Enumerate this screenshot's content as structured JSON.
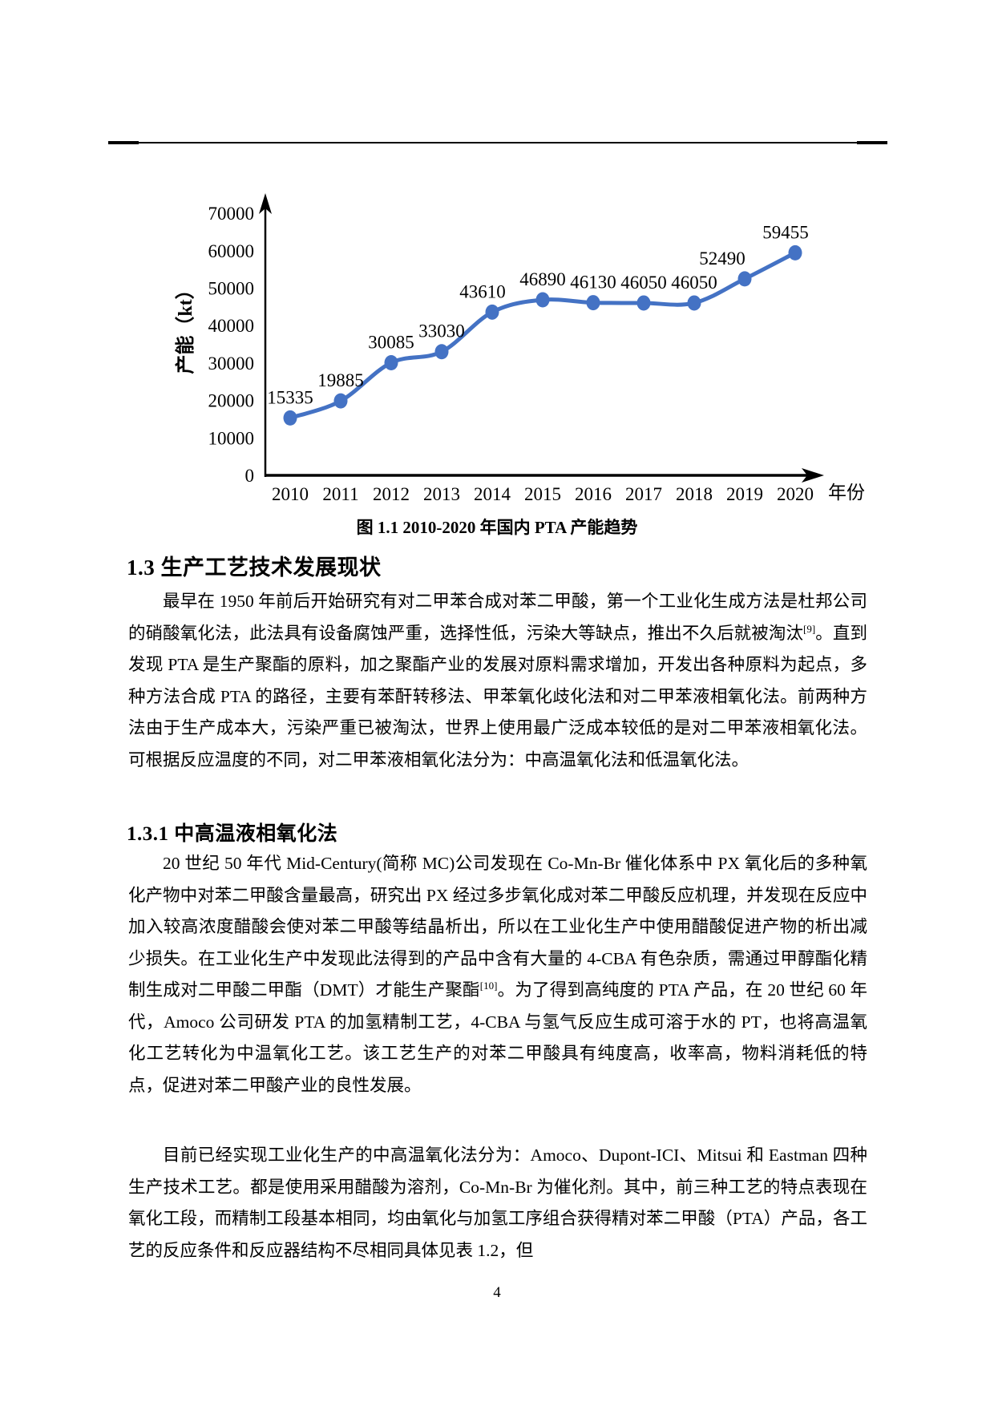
{
  "figure": {
    "caption": "图 1.1 2010-2020 年国内 PTA 产能趋势"
  },
  "chart_data": {
    "type": "line",
    "categories": [
      "2010",
      "2011",
      "2012",
      "2013",
      "2014",
      "2015",
      "2016",
      "2017",
      "2018",
      "2019",
      "2020"
    ],
    "values": [
      15335,
      19885,
      30085,
      33030,
      43610,
      46890,
      46130,
      46050,
      46050,
      52490,
      59455
    ],
    "title": "",
    "xlabel": "年份",
    "ylabel": "产能（kt）",
    "yticks": [
      0,
      10000,
      20000,
      30000,
      40000,
      50000,
      60000,
      70000
    ],
    "ylim": [
      0,
      70000
    ],
    "grid": false,
    "legend": "none",
    "data_labels": true,
    "line_color": "#4472C4",
    "axis_color": "#000000",
    "label_dx": [
      0,
      0,
      0,
      0,
      -12,
      0,
      0,
      0,
      0,
      -28,
      -12
    ]
  },
  "content": {
    "heading_1_3": "1.3 生产工艺技术发展现状",
    "para1": [
      {
        "t": "最早在 1950 年前后开始研究有对二甲苯合成对苯二甲酸，第一个工业化生成方法是杜邦公司的硝酸氧化法，此法具有设备腐蚀严重，选择性低，污染大等缺点，推出不久后就被淘汰"
      },
      {
        "sup": "[9]"
      },
      {
        "t": "。直到发现 PTA 是生产聚酯的原料，加之聚酯产业的发展对原料需求增加，开发出各种原料为起点，多种方法合成 PTA 的路径，主要有苯酐转移法、甲苯氧化歧化法和对二甲苯液相氧化法。前两种方法由于生产成本大，污染严重已被淘汰，世界上使用最广泛成本较低的是对二甲苯液相氧化法。可根据反应温度的不同，对二甲苯液相氧化法分为：中高温氧化法和低温氧化法。"
      }
    ],
    "heading_1_3_1": "1.3.1 中高温液相氧化法",
    "para2": [
      {
        "t": "20 世纪 50 年代 Mid-Century(简称 MC)公司发现在 Co-Mn-Br 催化体系中 PX 氧化后的多种氧化产物中对苯二甲酸含量最高，研究出 PX 经过多步氧化成对苯二甲酸反应机理，并发现在反应中加入较高浓度醋酸会使对苯二甲酸等结晶析出，所以在工业化生产中使用醋酸促进产物的析出减少损失。在工业化生产中发现此法得到的产品中含有大量的 4-CBA 有色杂质，需通过甲醇酯化精制生成对二甲酸二甲酯（DMT）才能生产聚酯"
      },
      {
        "sup": "[10]"
      },
      {
        "t": "。为了得到高纯度的 PTA 产品，在 20 世纪 60 年代，Amoco 公司研发 PTA 的加氢精制工艺，4-CBA 与氢气反应生成可溶于水的 PT，也将高温氧化工艺转化为中温氧化工艺。该工艺生产的对苯二甲酸具有纯度高，收率高，物料消耗低的特点，促进对苯二甲酸产业的良性发展。"
      }
    ],
    "para3": [
      {
        "t": "目前已经实现工业化生产的中高温氧化法分为：Amoco、Dupont-ICI、Mitsui 和 Eastman 四种生产技术工艺。都是使用采用醋酸为溶剂，Co-Mn-Br 为催化剂。其中，前三种工艺的特点表现在氧化工段，而精制工段基本相同，均由氧化与加氢工序组合获得精对苯二甲酸（PTA）产品，各工艺的反应条件和反应器结构不尽相同具体见表 1.2，但"
      }
    ]
  },
  "page": {
    "number": "4"
  }
}
